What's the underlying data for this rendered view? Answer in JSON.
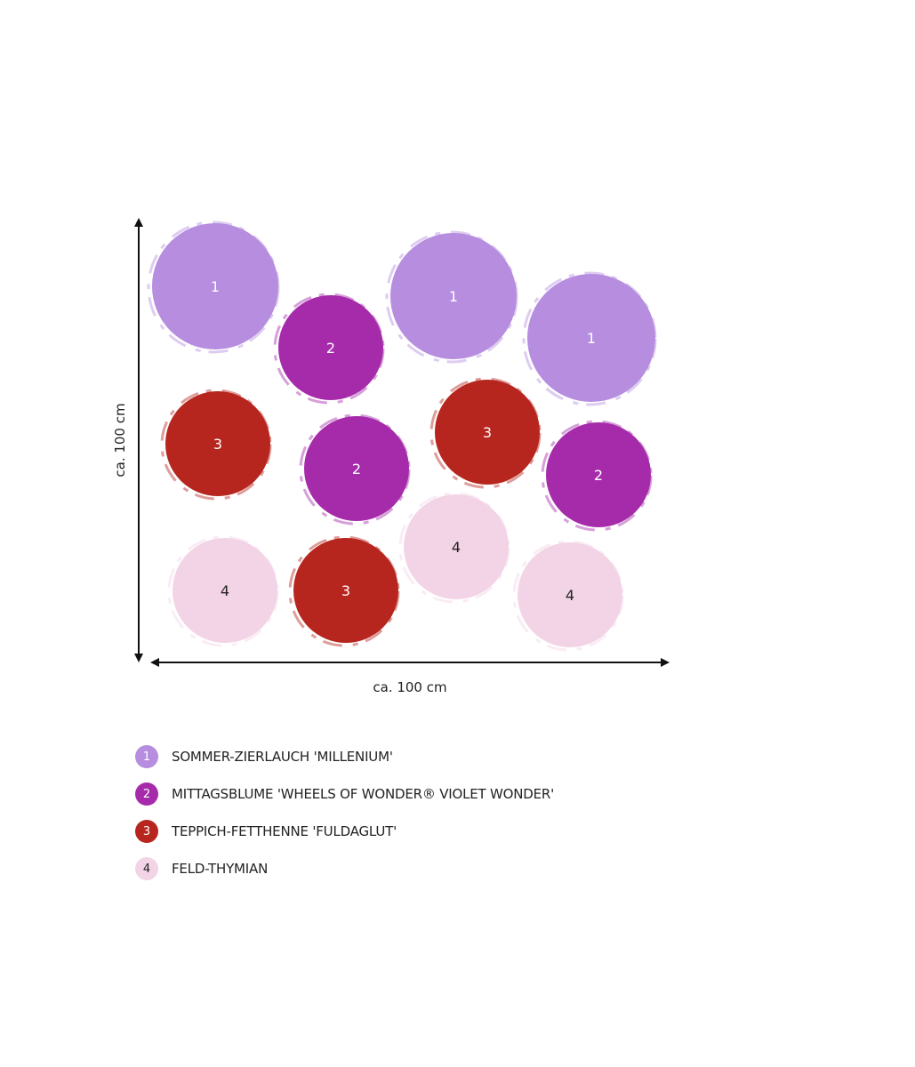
{
  "plants": [
    {
      "id": "1",
      "name": "SOMMER-ZIERLAUCH 'MILLENIUM'",
      "color": "#b68ddf",
      "text_color": "#ffffff"
    },
    {
      "id": "2",
      "name": "MITTAGSBLUME 'WHEELS OF WONDER® VIOLET WONDER'",
      "color": "#a52baa",
      "text_color": "#ffffff"
    },
    {
      "id": "3",
      "name": "TEPPICH-FETTHENNE 'FULDAGLUT'",
      "color": "#b7261e",
      "text_color": "#ffffff"
    },
    {
      "id": "4",
      "name": "FELD-THYMIAN",
      "color": "#f2d4e6",
      "text_color": "#222222"
    }
  ],
  "dimensions": {
    "height_label": "ca. 100 cm",
    "width_label": "ca. 100 cm"
  },
  "planting_plan": [
    {
      "plant": "1"
    },
    {
      "plant": "2"
    },
    {
      "plant": "1"
    },
    {
      "plant": "1"
    },
    {
      "plant": "3"
    },
    {
      "plant": "2"
    },
    {
      "plant": "3"
    },
    {
      "plant": "2"
    },
    {
      "plant": "4"
    },
    {
      "plant": "3"
    },
    {
      "plant": "4"
    },
    {
      "plant": "4"
    }
  ]
}
